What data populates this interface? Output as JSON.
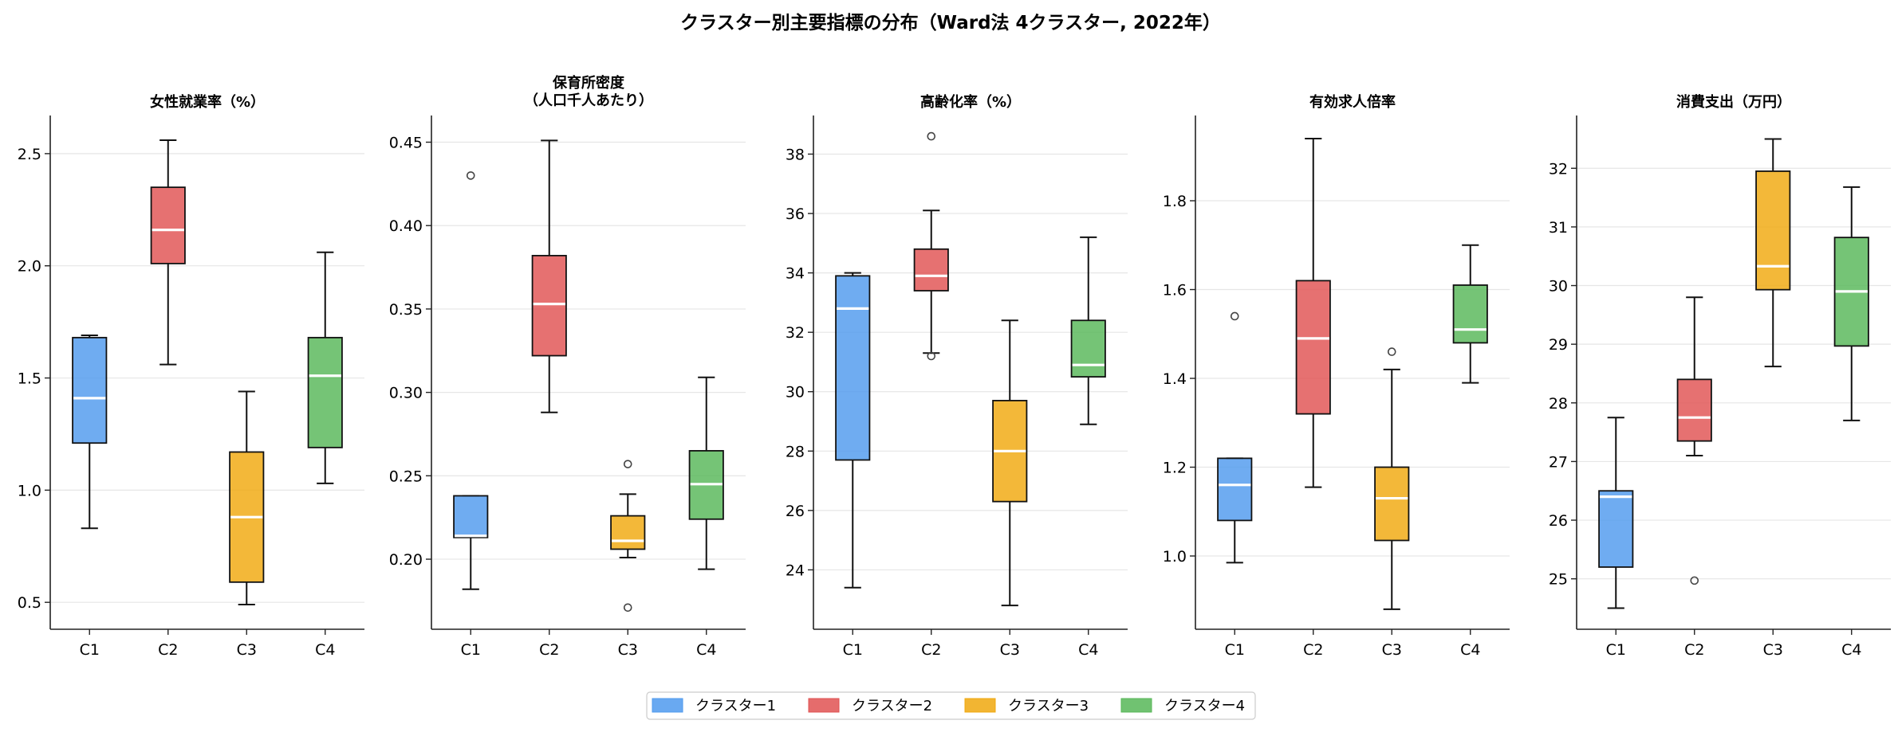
{
  "figure_title": "クラスター別主要指標の分布（Ward法 4クラスター, 2022年）",
  "legend": [
    {
      "label": "クラスター1",
      "color": "#4F9AEE"
    },
    {
      "label": "クラスター2",
      "color": "#E05252"
    },
    {
      "label": "クラスター3",
      "color": "#F0A80E"
    },
    {
      "label": "クラスター4",
      "color": "#57B758"
    }
  ],
  "chart_data": [
    {
      "type": "box",
      "title": "女性就業率（%）",
      "categories": [
        "C1",
        "C2",
        "C3",
        "C4"
      ],
      "ylim": [
        0.38,
        2.67
      ],
      "yticks": [
        0.5,
        1.0,
        1.5,
        2.0,
        2.5
      ],
      "ytick_labels": [
        "0.5",
        "1.0",
        "1.5",
        "2.0",
        "2.5"
      ],
      "grid": "horizontal",
      "boxes": [
        {
          "q1": 1.21,
          "median": 1.41,
          "q3": 1.68,
          "whislo": 0.83,
          "whishi": 1.69,
          "fliers": []
        },
        {
          "q1": 2.01,
          "median": 2.16,
          "q3": 2.35,
          "whislo": 1.56,
          "whishi": 2.56,
          "fliers": []
        },
        {
          "q1": 0.59,
          "median": 0.88,
          "q3": 1.17,
          "whislo": 0.49,
          "whishi": 1.44,
          "fliers": []
        },
        {
          "q1": 1.19,
          "median": 1.51,
          "q3": 1.68,
          "whislo": 1.03,
          "whishi": 2.06,
          "fliers": []
        }
      ]
    },
    {
      "type": "box",
      "title": "保育所密度\n（人口千人あたり）",
      "categories": [
        "C1",
        "C2",
        "C3",
        "C4"
      ],
      "ylim": [
        0.158,
        0.466
      ],
      "yticks": [
        0.2,
        0.25,
        0.3,
        0.35,
        0.4,
        0.45
      ],
      "ytick_labels": [
        "0.20",
        "0.25",
        "0.30",
        "0.35",
        "0.40",
        "0.45"
      ],
      "grid": "horizontal",
      "boxes": [
        {
          "q1": 0.213,
          "median": 0.214,
          "q3": 0.238,
          "whislo": 0.182,
          "whishi": 0.238,
          "fliers": [
            0.43
          ]
        },
        {
          "q1": 0.322,
          "median": 0.353,
          "q3": 0.382,
          "whislo": 0.288,
          "whishi": 0.451,
          "fliers": []
        },
        {
          "q1": 0.206,
          "median": 0.211,
          "q3": 0.226,
          "whislo": 0.201,
          "whishi": 0.239,
          "fliers": [
            0.257,
            0.171
          ]
        },
        {
          "q1": 0.224,
          "median": 0.245,
          "q3": 0.265,
          "whislo": 0.194,
          "whishi": 0.309,
          "fliers": []
        }
      ]
    },
    {
      "type": "box",
      "title": "高齢化率（%）",
      "categories": [
        "C1",
        "C2",
        "C3",
        "C4"
      ],
      "ylim": [
        22.0,
        39.3
      ],
      "yticks": [
        24,
        26,
        28,
        30,
        32,
        34,
        36,
        38
      ],
      "ytick_labels": [
        "24",
        "26",
        "28",
        "30",
        "32",
        "34",
        "36",
        "38"
      ],
      "grid": "horizontal",
      "boxes": [
        {
          "q1": 27.7,
          "median": 32.8,
          "q3": 33.9,
          "whislo": 23.4,
          "whishi": 34.0,
          "fliers": []
        },
        {
          "q1": 33.4,
          "median": 33.9,
          "q3": 34.8,
          "whislo": 31.3,
          "whishi": 36.1,
          "fliers": [
            31.2,
            38.6
          ]
        },
        {
          "q1": 26.3,
          "median": 28.0,
          "q3": 29.7,
          "whislo": 22.8,
          "whishi": 32.4,
          "fliers": []
        },
        {
          "q1": 30.5,
          "median": 30.9,
          "q3": 32.4,
          "whislo": 28.9,
          "whishi": 35.2,
          "fliers": []
        }
      ]
    },
    {
      "type": "box",
      "title": "有効求人倍率",
      "categories": [
        "C1",
        "C2",
        "C3",
        "C4"
      ],
      "ylim": [
        0.835,
        1.992
      ],
      "yticks": [
        1.0,
        1.2,
        1.4,
        1.6,
        1.8
      ],
      "ytick_labels": [
        "1.0",
        "1.2",
        "1.4",
        "1.6",
        "1.8"
      ],
      "grid": "horizontal",
      "boxes": [
        {
          "q1": 1.08,
          "median": 1.16,
          "q3": 1.22,
          "whislo": 0.985,
          "whishi": 1.22,
          "fliers": [
            1.54
          ]
        },
        {
          "q1": 1.32,
          "median": 1.49,
          "q3": 1.62,
          "whislo": 1.155,
          "whishi": 1.94,
          "fliers": []
        },
        {
          "q1": 1.035,
          "median": 1.13,
          "q3": 1.2,
          "whislo": 0.88,
          "whishi": 1.42,
          "fliers": [
            1.46
          ]
        },
        {
          "q1": 1.48,
          "median": 1.51,
          "q3": 1.61,
          "whislo": 1.39,
          "whishi": 1.7,
          "fliers": []
        }
      ]
    },
    {
      "type": "box",
      "title": "消費支出（万円）",
      "categories": [
        "C1",
        "C2",
        "C3",
        "C4"
      ],
      "ylim": [
        24.14,
        32.9
      ],
      "yticks": [
        25,
        26,
        27,
        28,
        29,
        30,
        31,
        32
      ],
      "ytick_labels": [
        "25",
        "26",
        "27",
        "28",
        "29",
        "30",
        "31",
        "32"
      ],
      "grid": "horizontal",
      "boxes": [
        {
          "q1": 25.2,
          "median": 26.4,
          "q3": 26.5,
          "whislo": 24.5,
          "whishi": 27.75,
          "fliers": []
        },
        {
          "q1": 27.35,
          "median": 27.75,
          "q3": 28.4,
          "whislo": 27.1,
          "whishi": 29.8,
          "fliers": [
            24.97
          ]
        },
        {
          "q1": 29.93,
          "median": 30.33,
          "q3": 31.95,
          "whislo": 28.62,
          "whishi": 32.5,
          "fliers": []
        },
        {
          "q1": 28.97,
          "median": 29.9,
          "q3": 30.82,
          "whislo": 27.7,
          "whishi": 31.68,
          "fliers": []
        }
      ]
    }
  ]
}
